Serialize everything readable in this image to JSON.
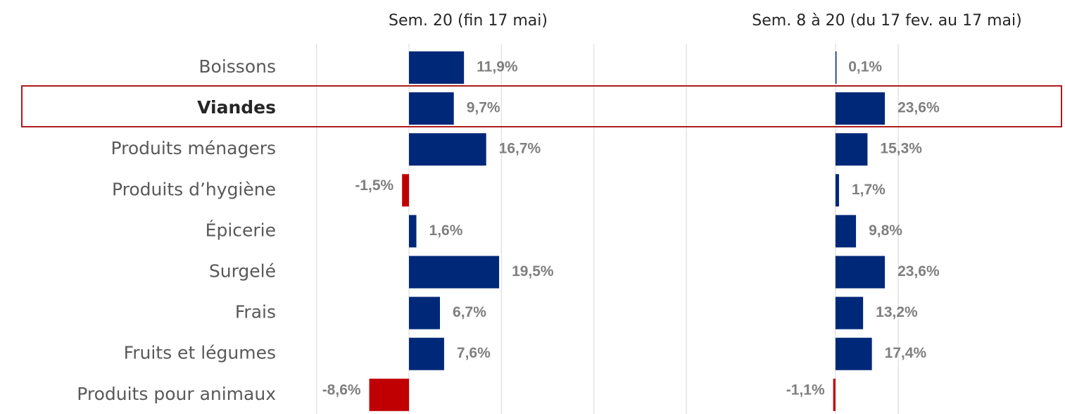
{
  "chart_data": [
    {
      "type": "barh",
      "title": "Sem. 20 (fin 17 mai)",
      "categories": [
        "Boissons",
        "Viandes",
        "Produits ménagers",
        "Produits d’hygiène",
        "Épicerie",
        "Surgelé",
        "Frais",
        "Fruits et légumes",
        "Produits pour animaux"
      ],
      "values": [
        11.9,
        9.7,
        16.7,
        -1.5,
        1.6,
        19.5,
        6.7,
        7.6,
        -8.6
      ],
      "value_labels": [
        "11,9%",
        "9,7%",
        "16,7%",
        "-1,5%",
        "1,6%",
        "19,5%",
        "6,7%",
        "7,6%",
        "-8,6%"
      ],
      "color": "#002878",
      "negative_color": "#c00000",
      "xlim": [
        -23,
        60
      ],
      "xticks": [
        -20,
        0,
        20,
        40,
        60
      ],
      "grid": true
    },
    {
      "type": "barh",
      "title": "Sem. 8 à 20 (du 17 fev. au 17 mai)",
      "values": [
        0.1,
        23.6,
        15.3,
        1.7,
        9.8,
        23.6,
        13.2,
        17.4,
        -1.1
      ],
      "value_labels": [
        "0,1%",
        "23,6%",
        "15,3%",
        "1,7%",
        "9,8%",
        "23,6%",
        "13,2%",
        "17,4%",
        "-1,1%"
      ],
      "color": "#002878",
      "negative_color": "#c00000",
      "xlim": [
        -40,
        109
      ],
      "xticks": [
        0,
        30
      ],
      "grid": true
    }
  ]
}
